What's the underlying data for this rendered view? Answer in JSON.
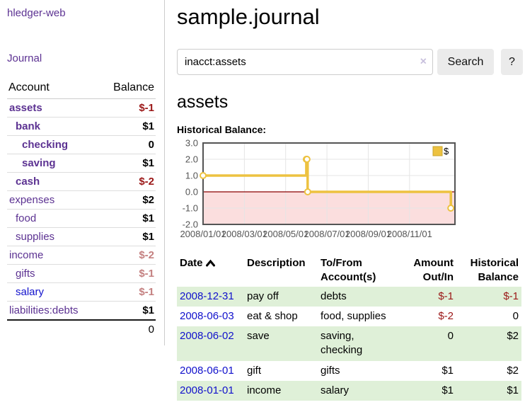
{
  "app": {
    "title": "hledger-web"
  },
  "colors": {
    "link_purple": "#5c3292",
    "link_blue": "#1111cc",
    "negative_strong": "#9b1717",
    "negative_soft": "#c48080",
    "row_green": "#dff0d8",
    "button_gray": "#ebebeb"
  },
  "sidebar": {
    "journal_link": "Journal",
    "table": {
      "account_header": "Account",
      "balance_header": "Balance",
      "accounts": [
        {
          "name": "assets",
          "indent": 0,
          "bold": true,
          "balance": "$-1",
          "neg": "strong",
          "link_color": "purple"
        },
        {
          "name": "bank",
          "indent": 1,
          "bold": true,
          "balance": "$1",
          "neg": "none",
          "link_color": "purple"
        },
        {
          "name": "checking",
          "indent": 2,
          "bold": true,
          "balance": "0",
          "neg": "none",
          "link_color": "purple"
        },
        {
          "name": "saving",
          "indent": 2,
          "bold": true,
          "balance": "$1",
          "neg": "none",
          "link_color": "purple"
        },
        {
          "name": "cash",
          "indent": 1,
          "bold": true,
          "balance": "$-2",
          "neg": "strong",
          "link_color": "purple"
        },
        {
          "name": "expenses",
          "indent": 0,
          "bold": false,
          "balance": "$2",
          "neg": "none",
          "link_color": "purple"
        },
        {
          "name": "food",
          "indent": 1,
          "bold": false,
          "balance": "$1",
          "neg": "none",
          "link_color": "purple"
        },
        {
          "name": "supplies",
          "indent": 1,
          "bold": false,
          "balance": "$1",
          "neg": "none",
          "link_color": "purple"
        },
        {
          "name": "income",
          "indent": 0,
          "bold": false,
          "balance": "$-2",
          "neg": "soft",
          "link_color": "purple"
        },
        {
          "name": "gifts",
          "indent": 1,
          "bold": false,
          "balance": "$-1",
          "neg": "soft",
          "link_color": "purple"
        },
        {
          "name": "salary",
          "indent": 1,
          "bold": false,
          "balance": "$-1",
          "neg": "soft",
          "link_color": "blue"
        },
        {
          "name": "liabilities:debts",
          "indent": 0,
          "bold": false,
          "balance": "$1",
          "neg": "none",
          "link_color": "purple"
        }
      ],
      "total": "0"
    }
  },
  "header": {
    "title": "sample.journal"
  },
  "search": {
    "value": "inacct:assets",
    "clear_icon": "×",
    "button": "Search",
    "help_button": "?"
  },
  "account_page": {
    "title": "assets",
    "chart_label": "Historical Balance:"
  },
  "chart_data": {
    "type": "line",
    "step": true,
    "title": "Historical Balance:",
    "legend_position": "top-right",
    "grid": true,
    "ylim": [
      -2,
      3
    ],
    "yticks": [
      {
        "label": "3.0",
        "value": 3
      },
      {
        "label": "2.0",
        "value": 2
      },
      {
        "label": "1.0",
        "value": 1
      },
      {
        "label": "0.0",
        "value": 0
      },
      {
        "label": "-1.0",
        "value": -1
      },
      {
        "label": "-2.0",
        "value": -2
      }
    ],
    "xticks": [
      {
        "label": "2008/01/01",
        "month": 0
      },
      {
        "label": "2008/03/01",
        "month": 2
      },
      {
        "label": "2008/05/01",
        "month": 4
      },
      {
        "label": "2008/07/01",
        "month": 6
      },
      {
        "label": "2008/09/01",
        "month": 8
      },
      {
        "label": "2008/11/01",
        "month": 10
      }
    ],
    "series": [
      {
        "name": "$",
        "color": "#edc240",
        "points": [
          {
            "date": "2008-01-01",
            "value": 1
          },
          {
            "date": "2008-06-01",
            "value": 2
          },
          {
            "date": "2008-06-02",
            "value": 2
          },
          {
            "date": "2008-06-03",
            "value": 0
          },
          {
            "date": "2008-12-31",
            "value": -1
          }
        ]
      }
    ],
    "negative_region_color": "#fbdede",
    "zero_line_color": "#8b0000"
  },
  "register": {
    "columns": [
      "Date",
      "Description",
      "To/From Account(s)",
      "Amount Out/In",
      "Historical Balance"
    ],
    "rows": [
      {
        "date": "2008-12-31",
        "description": "pay off",
        "accounts": "debts",
        "amount": "$-1",
        "amount_neg": true,
        "balance": "$-1",
        "balance_neg": true
      },
      {
        "date": "2008-06-03",
        "description": "eat & shop",
        "accounts": "food, supplies",
        "amount": "$-2",
        "amount_neg": true,
        "balance": "0",
        "balance_neg": false
      },
      {
        "date": "2008-06-02",
        "description": "save",
        "accounts": "saving, checking",
        "amount": "0",
        "amount_neg": false,
        "balance": "$2",
        "balance_neg": false
      },
      {
        "date": "2008-06-01",
        "description": "gift",
        "accounts": "gifts",
        "amount": "$1",
        "amount_neg": false,
        "balance": "$2",
        "balance_neg": false
      },
      {
        "date": "2008-01-01",
        "description": "income",
        "accounts": "salary",
        "amount": "$1",
        "amount_neg": false,
        "balance": "$1",
        "balance_neg": false
      }
    ]
  }
}
